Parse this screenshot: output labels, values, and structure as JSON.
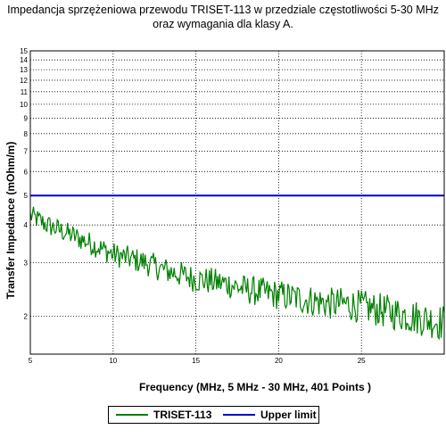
{
  "title": {
    "line1": "Impedancja sprzężeniowa przewodu TRISET-113 w przedziale częstotliwości 5-30 MHz",
    "line2": "oraz wymagania dla klasy A."
  },
  "chart_data": {
    "type": "line",
    "xlabel": "Frequency (MHz, 5 MHz - 30 MHz, 401 Points )",
    "ylabel": "Transfer Impedance (mOhm/m)",
    "xlim": [
      5,
      30
    ],
    "ylim": [
      1.5,
      15
    ],
    "y_scale": "log",
    "x_ticks": [
      5,
      10,
      15,
      20,
      25
    ],
    "y_ticks": [
      2,
      3,
      4,
      5,
      6,
      7,
      8,
      9,
      10,
      11,
      12,
      13,
      14,
      15
    ],
    "grid": true,
    "legend_position": "bottom",
    "series": [
      {
        "name": "TRISET-113",
        "color": "#008000",
        "x": [
          5,
          6,
          7,
          8,
          9,
          10,
          11,
          12,
          13,
          14,
          15,
          16,
          17,
          18,
          19,
          20,
          21,
          22,
          23,
          24,
          25,
          26,
          27,
          28,
          29,
          30
        ],
        "y": [
          4.3,
          4.0,
          3.8,
          3.6,
          3.4,
          3.2,
          3.1,
          3.0,
          2.85,
          2.75,
          2.65,
          2.6,
          2.55,
          2.45,
          2.4,
          2.35,
          2.3,
          2.25,
          2.2,
          2.2,
          2.15,
          2.1,
          2.05,
          2.0,
          1.95,
          1.9
        ]
      },
      {
        "name": "Upper limit",
        "color": "#0000cc",
        "x": [
          5,
          30
        ],
        "y": [
          5,
          5
        ]
      }
    ]
  }
}
